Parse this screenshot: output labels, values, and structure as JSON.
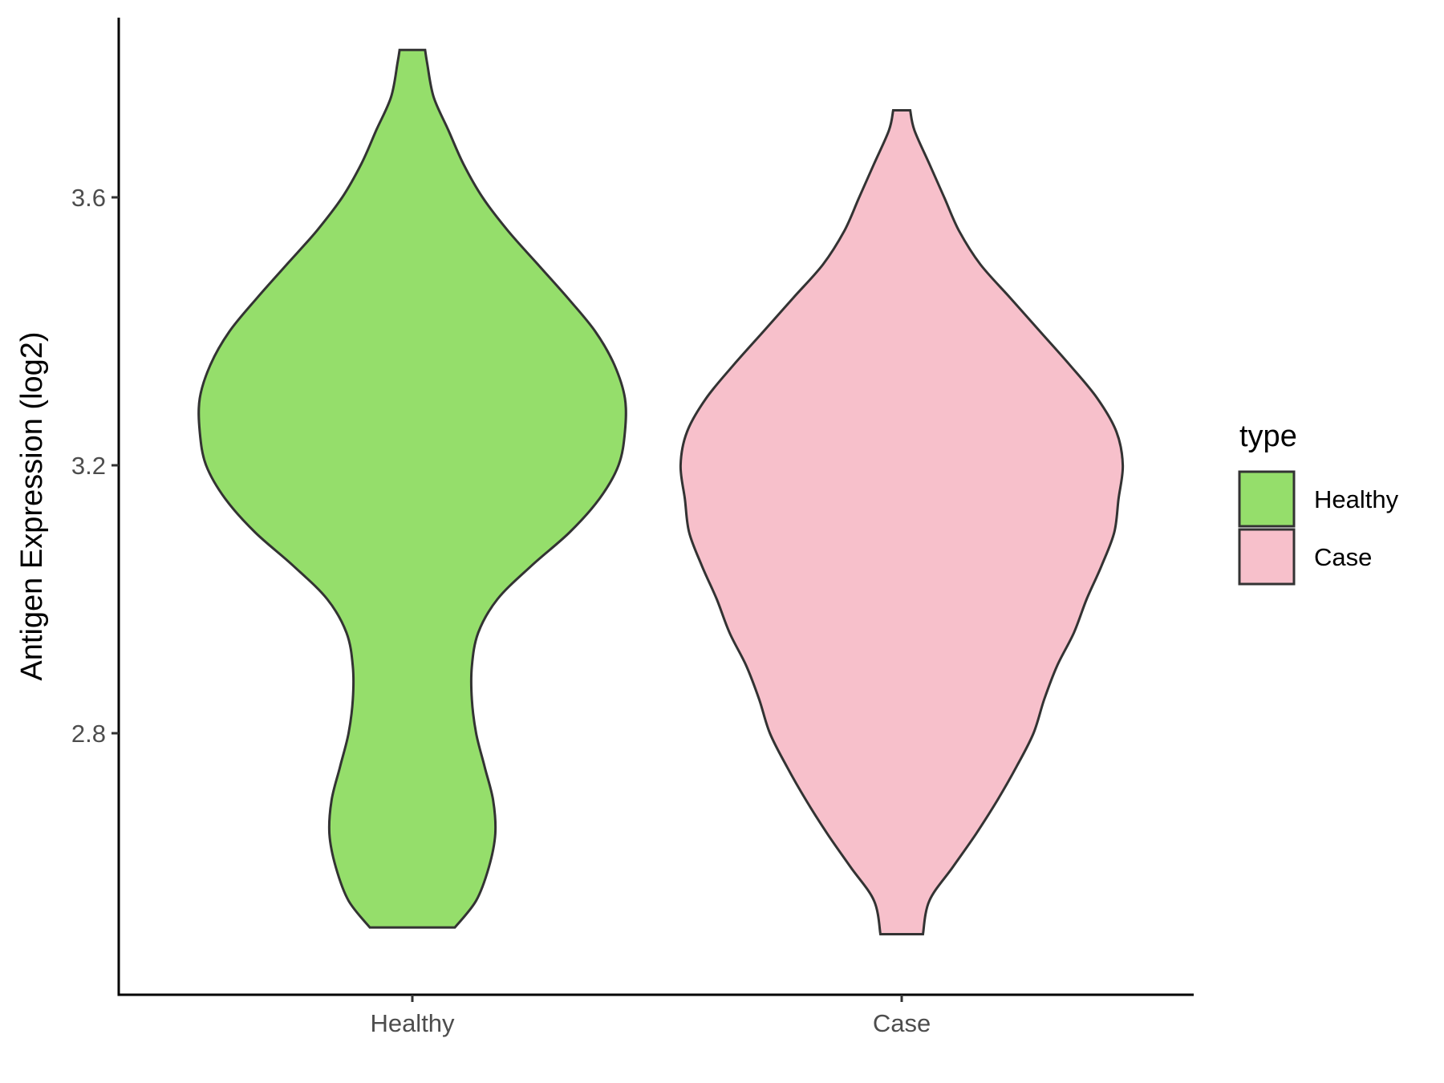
{
  "chart_data": {
    "type": "violin",
    "title": "",
    "xlabel": "",
    "ylabel": "Antigen Expression (log2)",
    "yticks": [
      2.8,
      3.2,
      3.6
    ],
    "ylim": [
      2.45,
      3.88
    ],
    "grid": false,
    "legend": {
      "title": "type",
      "placement": "right",
      "entries": [
        {
          "label": "Healthy",
          "color": "#95de6b"
        },
        {
          "label": "Case",
          "color": "#f7c0cb"
        }
      ]
    },
    "categories": [
      "Healthy",
      "Case"
    ],
    "series": [
      {
        "name": "Healthy",
        "color": "#95de6b",
        "min": 2.51,
        "max": 3.82,
        "density": [
          [
            2.51,
            0.2
          ],
          [
            2.55,
            0.3
          ],
          [
            2.6,
            0.36
          ],
          [
            2.65,
            0.39
          ],
          [
            2.7,
            0.38
          ],
          [
            2.75,
            0.34
          ],
          [
            2.8,
            0.3
          ],
          [
            2.85,
            0.28
          ],
          [
            2.9,
            0.28
          ],
          [
            2.95,
            0.31
          ],
          [
            3.0,
            0.4
          ],
          [
            3.05,
            0.56
          ],
          [
            3.1,
            0.74
          ],
          [
            3.15,
            0.88
          ],
          [
            3.2,
            0.97
          ],
          [
            3.25,
            1.0
          ],
          [
            3.3,
            1.0
          ],
          [
            3.35,
            0.95
          ],
          [
            3.4,
            0.86
          ],
          [
            3.45,
            0.73
          ],
          [
            3.5,
            0.59
          ],
          [
            3.55,
            0.45
          ],
          [
            3.6,
            0.33
          ],
          [
            3.65,
            0.24
          ],
          [
            3.7,
            0.17
          ],
          [
            3.75,
            0.1
          ],
          [
            3.8,
            0.07
          ],
          [
            3.82,
            0.06
          ]
        ]
      },
      {
        "name": "Case",
        "color": "#f7c0cb",
        "min": 2.5,
        "max": 3.73,
        "density": [
          [
            2.5,
            0.1
          ],
          [
            2.55,
            0.13
          ],
          [
            2.6,
            0.24
          ],
          [
            2.65,
            0.35
          ],
          [
            2.7,
            0.45
          ],
          [
            2.75,
            0.54
          ],
          [
            2.8,
            0.62
          ],
          [
            2.85,
            0.67
          ],
          [
            2.9,
            0.73
          ],
          [
            2.95,
            0.81
          ],
          [
            3.0,
            0.87
          ],
          [
            3.05,
            0.94
          ],
          [
            3.1,
            1.0
          ],
          [
            3.15,
            1.02
          ],
          [
            3.2,
            1.04
          ],
          [
            3.25,
            1.01
          ],
          [
            3.3,
            0.92
          ],
          [
            3.35,
            0.79
          ],
          [
            3.4,
            0.65
          ],
          [
            3.45,
            0.51
          ],
          [
            3.5,
            0.37
          ],
          [
            3.55,
            0.27
          ],
          [
            3.6,
            0.2
          ],
          [
            3.65,
            0.13
          ],
          [
            3.7,
            0.06
          ],
          [
            3.73,
            0.04
          ]
        ]
      }
    ]
  }
}
